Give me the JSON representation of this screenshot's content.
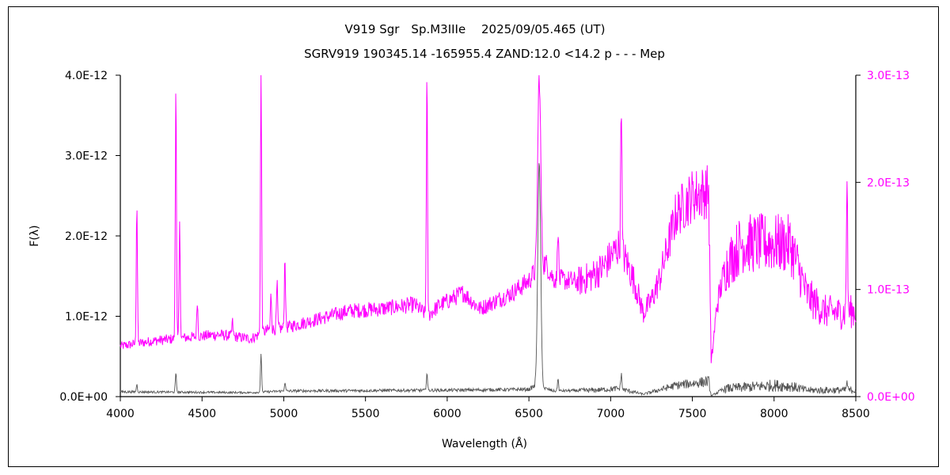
{
  "chart_data": {
    "type": "line",
    "title": "V919 Sgr　Sp.M3IIIe　 2025/09/05.465 (UT)",
    "subtitle": "SGRV919 190345.14 -165955.4 ZAND:12.0 <14.2 p - - - Mep",
    "xlabel": "Wavelength (Å)",
    "ylabel": "F(λ)",
    "xlim": [
      4000,
      8500
    ],
    "ylim": [
      0,
      4e-12
    ],
    "ylim_right": [
      0,
      3e-13
    ],
    "x_ticks": [
      "4000",
      "4500",
      "5000",
      "5500",
      "6000",
      "6500",
      "7000",
      "7500",
      "8000",
      "8500"
    ],
    "y_ticks_left": [
      "0.0E+00",
      "1.0E-12",
      "2.0E-12",
      "3.0E-12",
      "4.0E-12"
    ],
    "y_ticks_right": [
      "0.0E+00",
      "1.0E-13",
      "2.0E-13",
      "3.0E-13"
    ],
    "grid": false,
    "colors": {
      "right_axis": "#ff00ff",
      "series_right": "#ff00ff",
      "series_left": "#555555"
    },
    "series": [
      {
        "axis": "right",
        "continuum": [
          [
            4000,
            4.7e-14
          ],
          [
            4200,
            5.2e-14
          ],
          [
            4400,
            5.5e-14
          ],
          [
            4600,
            5.8e-14
          ],
          [
            4800,
            5.4e-14
          ],
          [
            4900,
            6.2e-14
          ],
          [
            5000,
            6.4e-14
          ],
          [
            5200,
            7.2e-14
          ],
          [
            5400,
            8e-14
          ],
          [
            5600,
            8.2e-14
          ],
          [
            5800,
            8.6e-14
          ],
          [
            5880,
            7.5e-14
          ],
          [
            5950,
            8.5e-14
          ],
          [
            6100,
            9.7e-14
          ],
          [
            6150,
            8.9e-14
          ],
          [
            6200,
            8.2e-14
          ],
          [
            6400,
            9.7e-14
          ],
          [
            6500,
            1.08e-13
          ],
          [
            6550,
            1.2e-13
          ],
          [
            6600,
            1.25e-13
          ],
          [
            6650,
            1.1e-13
          ],
          [
            6800,
            1.07e-13
          ],
          [
            6880,
            1.12e-13
          ],
          [
            6950,
            1.2e-13
          ],
          [
            7050,
            1.4e-13
          ],
          [
            7100,
            1.25e-13
          ],
          [
            7150,
            1.05e-13
          ],
          [
            7200,
            7.8e-14
          ],
          [
            7250,
            9e-14
          ],
          [
            7300,
            1.1e-13
          ],
          [
            7400,
            1.7e-13
          ],
          [
            7500,
            1.88e-13
          ],
          [
            7600,
            1.92e-13
          ],
          [
            7615,
            3e-14
          ],
          [
            7650,
            8.5e-14
          ],
          [
            7700,
            1.2e-13
          ],
          [
            7800,
            1.43e-13
          ],
          [
            8000,
            1.43e-13
          ],
          [
            8100,
            1.42e-13
          ],
          [
            8150,
            1.2e-13
          ],
          [
            8200,
            9.5e-14
          ],
          [
            8300,
            8e-14
          ],
          [
            8400,
            7.8e-14
          ],
          [
            8500,
            8e-14
          ]
        ],
        "lines": [
          [
            4101,
            1.8e-13
          ],
          [
            4340,
            2.93e-13
          ],
          [
            4363,
            1.6e-13
          ],
          [
            4471,
            9e-14
          ],
          [
            4686,
            7e-14
          ],
          [
            4861,
            3e-13
          ],
          [
            4922,
            9.5e-14
          ],
          [
            4959,
            1.05e-13
          ],
          [
            5007,
            1.32e-13
          ],
          [
            5876,
            3e-13
          ],
          [
            6563,
            3e-13
          ],
          [
            6678,
            1.6e-13
          ],
          [
            7065,
            2.83e-13
          ],
          [
            8446,
            2.05e-13
          ]
        ]
      },
      {
        "axis": "left",
        "continuum": [
          [
            4000,
            6e-14
          ],
          [
            4800,
            5e-14
          ],
          [
            5000,
            7e-14
          ],
          [
            6000,
            8e-14
          ],
          [
            6500,
            9e-14
          ],
          [
            6550,
            1.5e-13
          ],
          [
            6600,
            1e-13
          ],
          [
            6650,
            7e-14
          ],
          [
            6900,
            8e-14
          ],
          [
            7050,
            1e-13
          ],
          [
            7200,
            3e-14
          ],
          [
            7400,
            1.4e-13
          ],
          [
            7600,
            1.9e-13
          ],
          [
            7615,
            1e-14
          ],
          [
            7700,
            1e-13
          ],
          [
            8000,
            1.4e-13
          ],
          [
            8100,
            1.3e-13
          ],
          [
            8200,
            8e-14
          ],
          [
            8500,
            8e-14
          ]
        ],
        "lines": [
          [
            4101,
            1.5e-13
          ],
          [
            4340,
            2.9e-13
          ],
          [
            4861,
            5.2e-13
          ],
          [
            5007,
            1.8e-13
          ],
          [
            5876,
            3e-13
          ],
          [
            6563,
            2.92e-12
          ],
          [
            6678,
            2.2e-13
          ],
          [
            7065,
            2.8e-13
          ],
          [
            8446,
            1.8e-13
          ]
        ]
      }
    ]
  }
}
